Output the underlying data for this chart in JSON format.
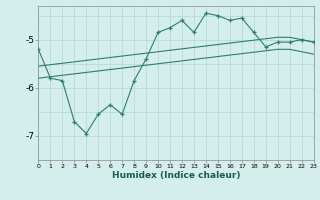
{
  "xlabel": "Humidex (Indice chaleur)",
  "bg_color": "#d4eeec",
  "line_color": "#2e7d6e",
  "grid_color": "#b0d8d4",
  "x_values": [
    0,
    1,
    2,
    3,
    4,
    5,
    6,
    7,
    8,
    9,
    10,
    11,
    12,
    13,
    14,
    15,
    16,
    17,
    18,
    19,
    20,
    21,
    22,
    23
  ],
  "y_main": [
    -5.2,
    -5.8,
    -5.85,
    -6.7,
    -6.95,
    -6.55,
    -6.35,
    -6.55,
    -5.85,
    -5.4,
    -4.85,
    -4.75,
    -4.6,
    -4.85,
    -4.45,
    -4.5,
    -4.6,
    -4.55,
    -4.85,
    -5.15,
    -5.05,
    -5.05,
    -5.0,
    -5.05
  ],
  "y_upper": [
    -5.55,
    -5.52,
    -5.49,
    -5.46,
    -5.43,
    -5.4,
    -5.37,
    -5.34,
    -5.31,
    -5.28,
    -5.25,
    -5.22,
    -5.19,
    -5.16,
    -5.13,
    -5.1,
    -5.07,
    -5.04,
    -5.01,
    -4.98,
    -4.95,
    -4.95,
    -5.0,
    -5.05
  ],
  "y_lower": [
    -5.8,
    -5.77,
    -5.74,
    -5.71,
    -5.68,
    -5.65,
    -5.62,
    -5.59,
    -5.56,
    -5.53,
    -5.5,
    -5.47,
    -5.44,
    -5.41,
    -5.38,
    -5.35,
    -5.32,
    -5.29,
    -5.26,
    -5.23,
    -5.2,
    -5.2,
    -5.25,
    -5.3
  ],
  "ylim": [
    -7.5,
    -4.3
  ],
  "yticks": [
    -7,
    -6,
    -5
  ],
  "xlim": [
    0,
    23
  ],
  "xtick_labels": [
    "0",
    "1",
    "2",
    "3",
    "4",
    "5",
    "6",
    "7",
    "8",
    "9",
    "10",
    "11",
    "12",
    "13",
    "14",
    "15",
    "16",
    "17",
    "18",
    "19",
    "20",
    "21",
    "22",
    "23"
  ]
}
